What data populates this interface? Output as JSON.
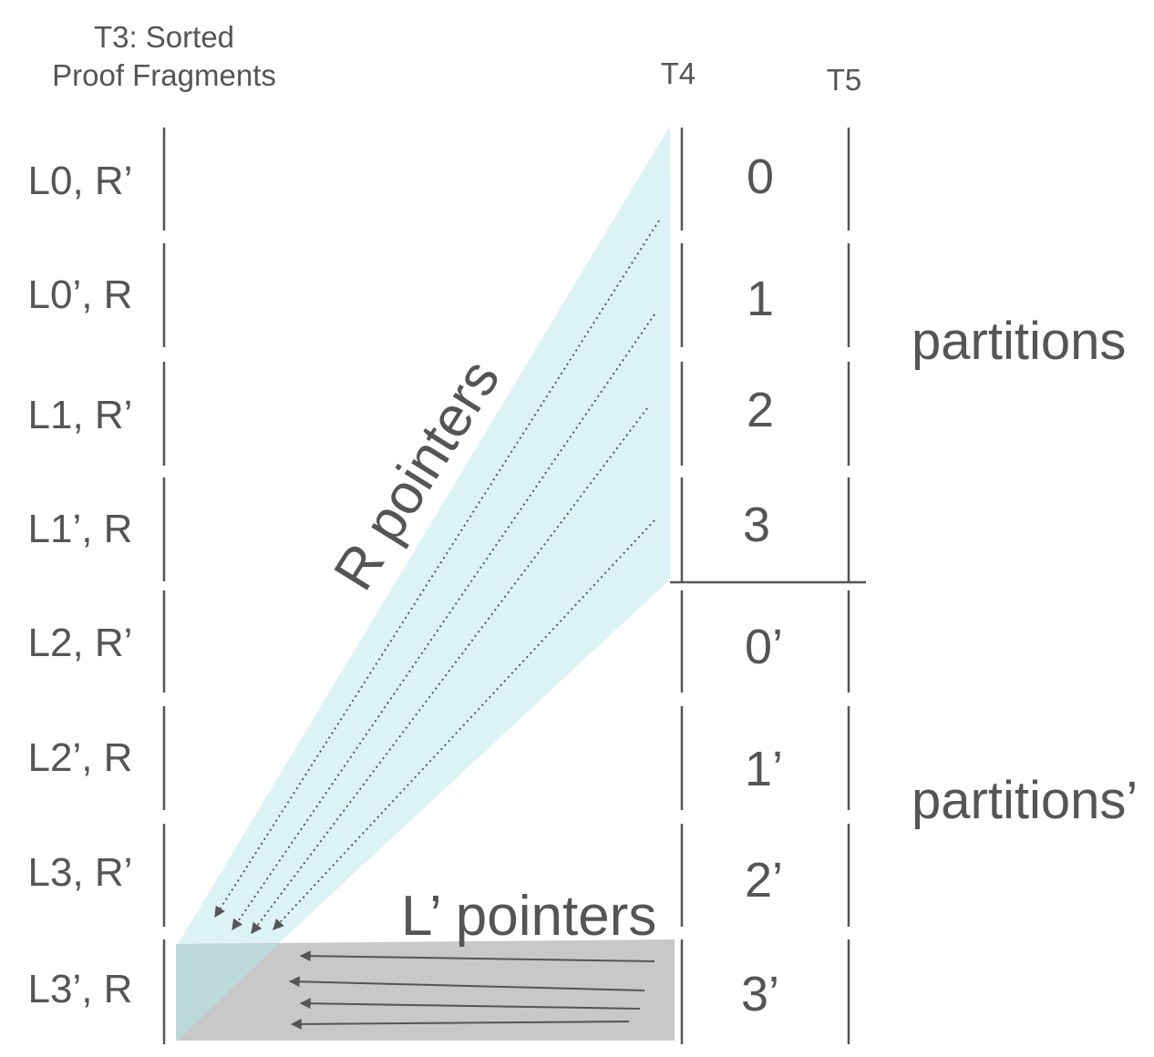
{
  "headers": {
    "t3_line1": "T3: Sorted",
    "t3_line2": "Proof Fragments",
    "t4": "T4",
    "t5": "T5"
  },
  "rows": [
    "L0, R’",
    "L0’, R",
    "L1, R’",
    "L1’, R",
    "L2, R’",
    "L2’, R",
    "L3, R’",
    "L3’, R"
  ],
  "partitions": [
    "0",
    "1",
    "2",
    "3",
    "0’",
    "1’",
    "2’",
    "3’"
  ],
  "groups": {
    "first": "partitions",
    "second": "partitions’"
  },
  "pointers": {
    "r": "R pointers",
    "l": "L’ pointers"
  },
  "colors": {
    "r_region": "#dcf3f6",
    "l_region": "#c8c8c8",
    "lines": "#555555"
  }
}
